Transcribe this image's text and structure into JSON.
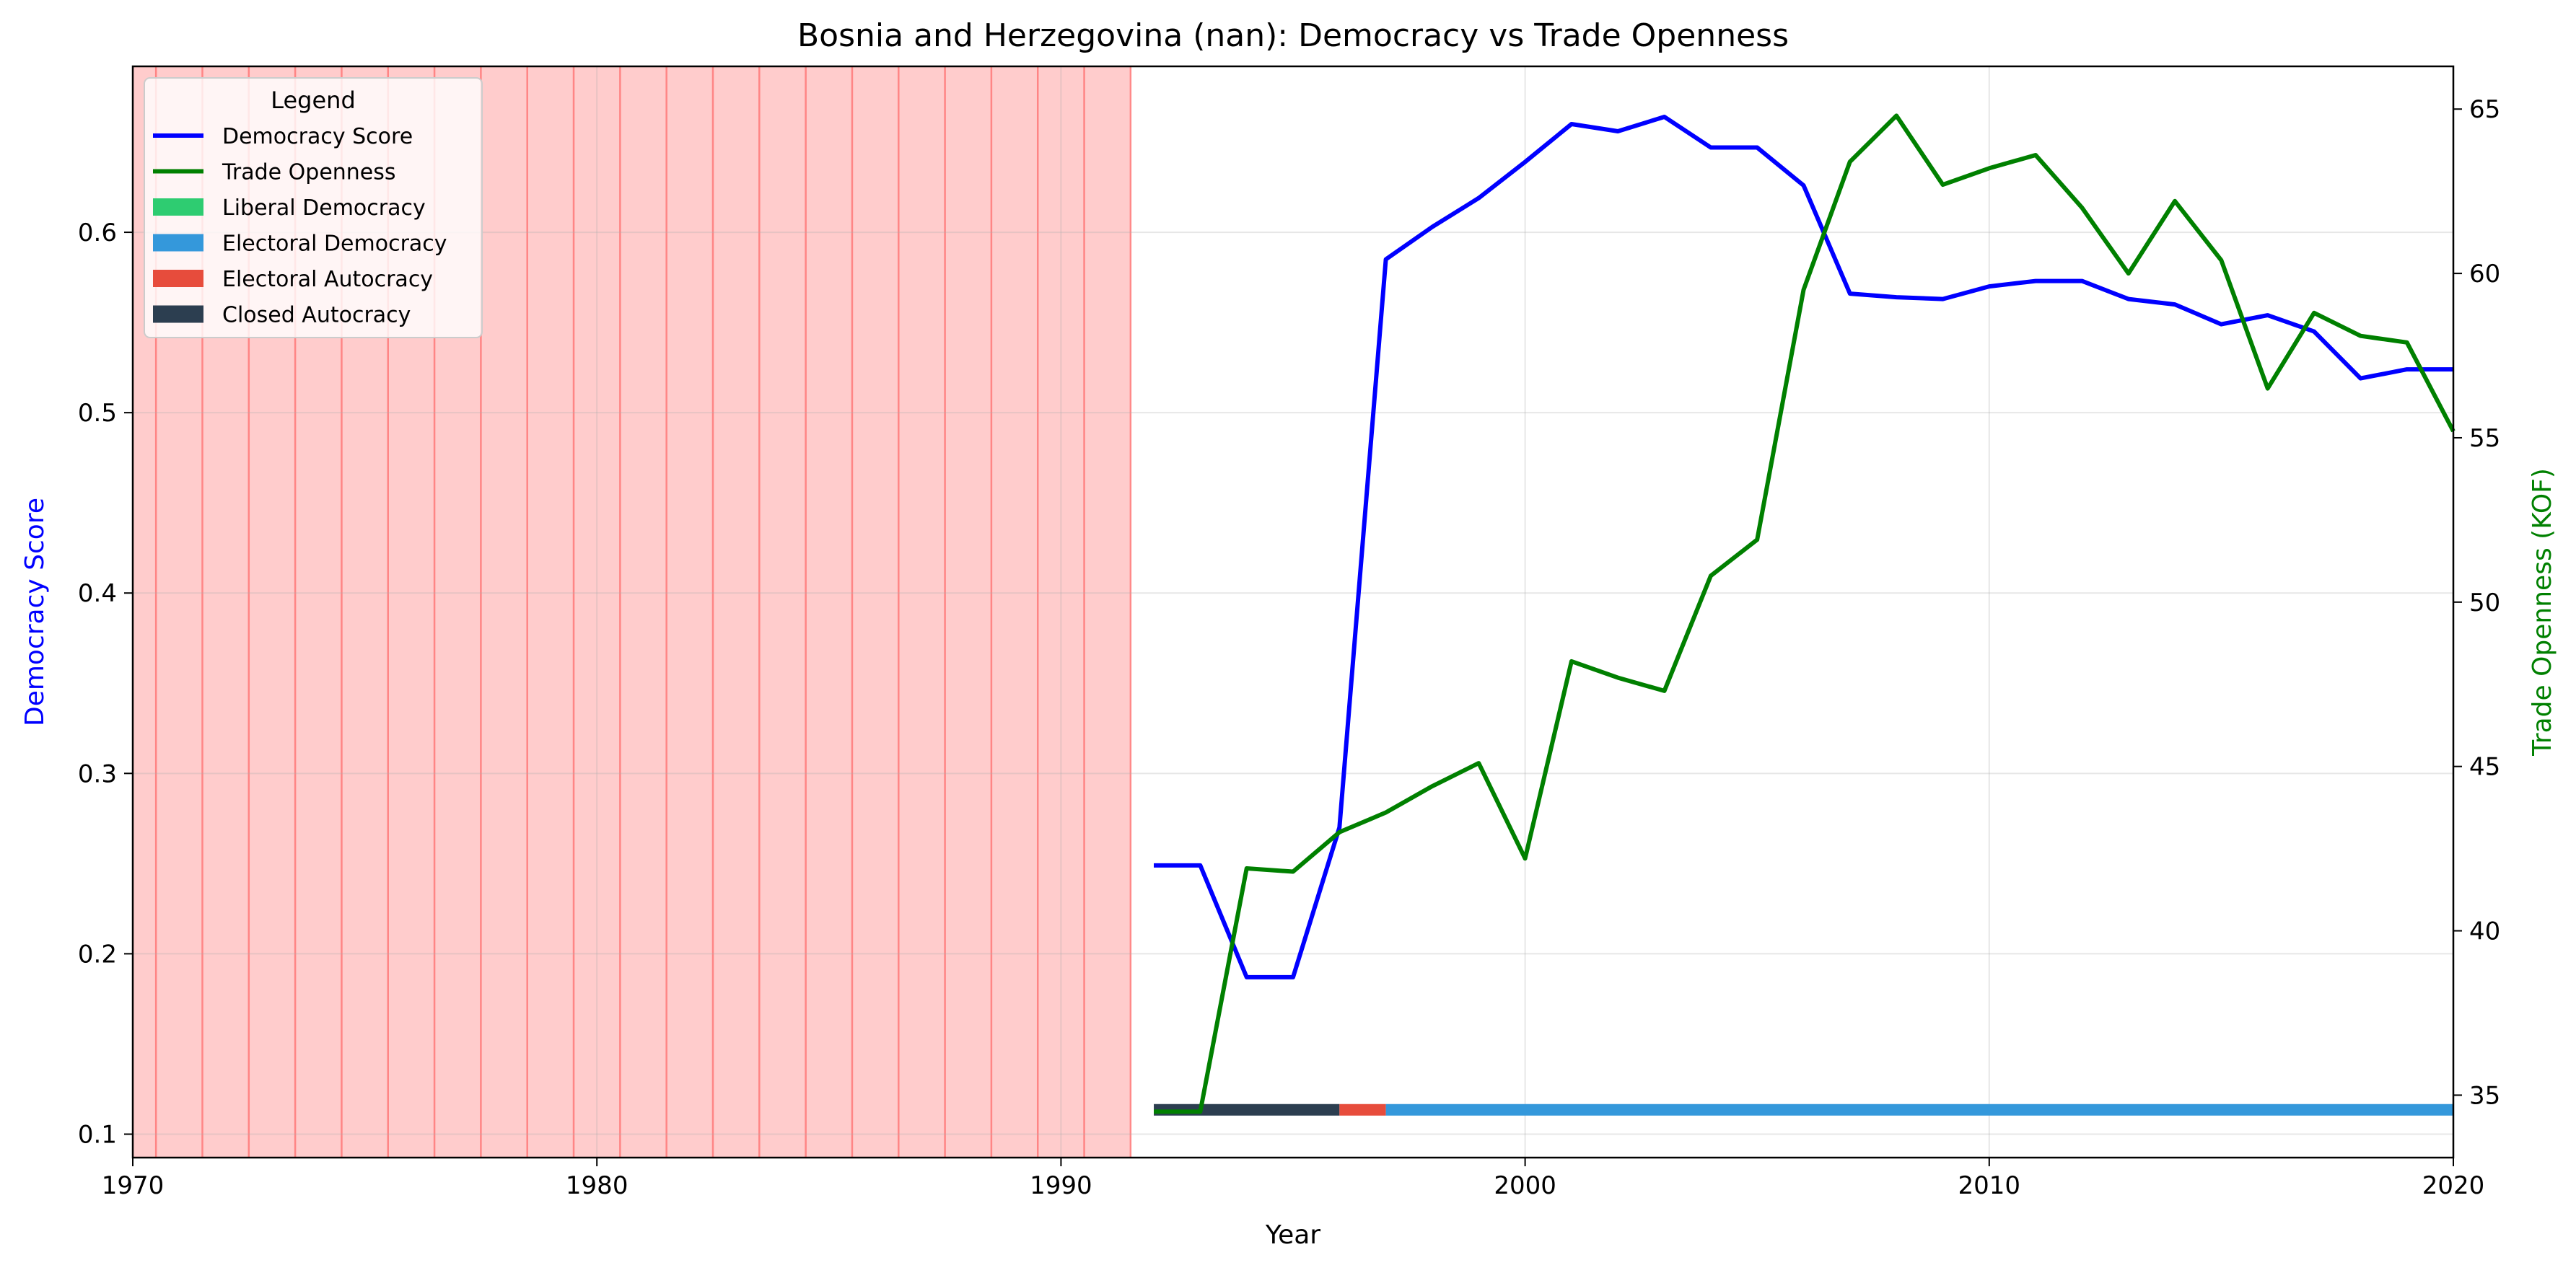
{
  "chart_data": {
    "type": "line",
    "title": "Bosnia and Herzegovina (nan): Democracy vs Trade Openness",
    "xlabel": "Year",
    "ylabel_left": "Democracy Score",
    "ylabel_right": "Trade Openness (KOF)",
    "xlim": [
      1970,
      2020
    ],
    "ylim_left": [
      0.087,
      0.692
    ],
    "ylim_right": [
      33.1,
      66.3
    ],
    "x_ticks": [
      "1970",
      "1980",
      "1990",
      "2000",
      "2010",
      "2020"
    ],
    "y_left_ticks": [
      "0.1",
      "0.2",
      "0.3",
      "0.4",
      "0.5",
      "0.6"
    ],
    "y_right_ticks": [
      "35",
      "40",
      "45",
      "50",
      "55",
      "60",
      "65"
    ],
    "grid": true,
    "colors": {
      "democracy": "#0000ff",
      "trade": "#008000",
      "shading": "#ff9999",
      "shading_lines": "#ff6666",
      "liberal_democracy": "#2ecc71",
      "electoral_democracy": "#3498db",
      "electoral_autocracy": "#e74c3c",
      "closed_autocracy": "#2c3e50"
    },
    "legend": {
      "title": "Legend",
      "placement": "top-left",
      "items": [
        {
          "label": "Democracy Score",
          "kind": "line",
          "color": "#0000ff"
        },
        {
          "label": "Trade Openness",
          "kind": "line",
          "color": "#008000"
        },
        {
          "label": "Liberal Democracy",
          "kind": "patch",
          "color": "#2ecc71"
        },
        {
          "label": "Electoral Democracy",
          "kind": "patch",
          "color": "#3498db"
        },
        {
          "label": "Electoral Autocracy",
          "kind": "patch",
          "color": "#e74c3c"
        },
        {
          "label": "Closed Autocracy",
          "kind": "patch",
          "color": "#2c3e50"
        }
      ]
    },
    "shaded_region": [
      1970,
      1991.5
    ],
    "shaded_lines": [
      1970.5,
      1971.5,
      1972.5,
      1973.5,
      1974.5,
      1975.5,
      1976.5,
      1977.5,
      1978.5,
      1979.5,
      1980.5,
      1981.5,
      1982.5,
      1983.5,
      1984.5,
      1985.5,
      1986.5,
      1987.5,
      1988.5,
      1989.5,
      1990.5,
      1991.5
    ],
    "series": [
      {
        "name": "Democracy Score",
        "axis": "left",
        "x": [
          1992,
          1993,
          1994,
          1995,
          1996,
          1997,
          1998,
          1999,
          2000,
          2001,
          2002,
          2003,
          2004,
          2005,
          2006,
          2007,
          2008,
          2009,
          2010,
          2011,
          2012,
          2013,
          2014,
          2015,
          2016,
          2017,
          2018,
          2019,
          2020
        ],
        "values": [
          0.249,
          0.249,
          0.187,
          0.187,
          0.27,
          0.585,
          0.603,
          0.619,
          0.639,
          0.66,
          0.656,
          0.664,
          0.647,
          0.647,
          0.626,
          0.566,
          0.564,
          0.563,
          0.57,
          0.573,
          0.573,
          0.563,
          0.56,
          0.549,
          0.554,
          0.545,
          0.519,
          0.524,
          0.524
        ]
      },
      {
        "name": "Trade Openness",
        "axis": "right",
        "x": [
          1992,
          1993,
          1994,
          1995,
          1996,
          1997,
          1998,
          1999,
          2000,
          2001,
          2002,
          2003,
          2004,
          2005,
          2006,
          2007,
          2008,
          2009,
          2010,
          2011,
          2012,
          2013,
          2014,
          2015,
          2016,
          2017,
          2018,
          2019,
          2020
        ],
        "values": [
          34.5,
          34.5,
          41.9,
          41.8,
          43.0,
          43.6,
          44.4,
          45.1,
          42.2,
          48.2,
          47.7,
          47.3,
          50.8,
          51.9,
          59.5,
          63.4,
          64.8,
          62.7,
          63.2,
          63.6,
          62.0,
          60.0,
          62.2,
          60.4,
          56.5,
          58.8,
          58.1,
          57.9,
          55.2
        ]
      }
    ],
    "regime_segments": [
      {
        "start": 1992,
        "end": 1996,
        "regime": "Closed Autocracy",
        "color": "#2c3e50"
      },
      {
        "start": 1996,
        "end": 1997,
        "regime": "Electoral Autocracy",
        "color": "#e74c3c"
      },
      {
        "start": 1997,
        "end": 2020,
        "regime": "Electoral Democracy",
        "color": "#3498db"
      }
    ],
    "regime_bar_level": 0.1135
  }
}
